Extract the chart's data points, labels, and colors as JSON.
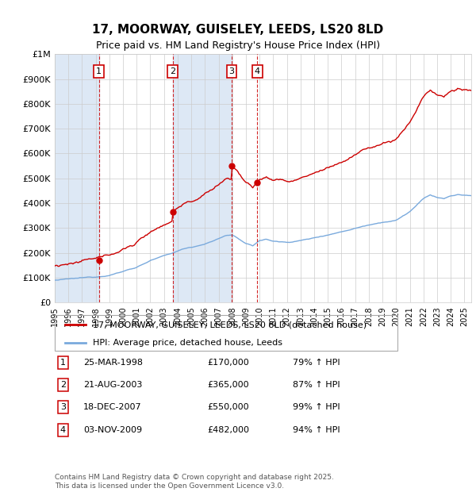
{
  "title": "17, MOORWAY, GUISELEY, LEEDS, LS20 8LD",
  "subtitle": "Price paid vs. HM Land Registry's House Price Index (HPI)",
  "ylim": [
    0,
    1000000
  ],
  "xlim_start": 1995,
  "xlim_end": 2025.5,
  "yticks": [
    0,
    100000,
    200000,
    300000,
    400000,
    500000,
    600000,
    700000,
    800000,
    900000,
    1000000
  ],
  "ytick_labels": [
    "£0",
    "£100K",
    "£200K",
    "£300K",
    "£400K",
    "£500K",
    "£600K",
    "£700K",
    "£800K",
    "£900K",
    "£1M"
  ],
  "transactions": [
    {
      "num": 1,
      "date": "25-MAR-1998",
      "price": 170000,
      "hpi_pct": "79%",
      "year": 1998.23
    },
    {
      "num": 2,
      "date": "21-AUG-2003",
      "price": 365000,
      "hpi_pct": "87%",
      "year": 2003.64
    },
    {
      "num": 3,
      "date": "18-DEC-2007",
      "price": 550000,
      "hpi_pct": "99%",
      "year": 2007.96
    },
    {
      "num": 4,
      "date": "03-NOV-2009",
      "price": 482000,
      "hpi_pct": "94%",
      "year": 2009.84
    }
  ],
  "legend_property": "17, MOORWAY, GUISELEY, LEEDS, LS20 8LD (detached house)",
  "legend_hpi": "HPI: Average price, detached house, Leeds",
  "property_line_color": "#cc0000",
  "hpi_line_color": "#7aaadd",
  "shade_color": "#dde8f5",
  "marker_color": "#cc0000",
  "dashed_line_color": "#cc0000",
  "footer": "Contains HM Land Registry data © Crown copyright and database right 2025.\nThis data is licensed under the Open Government Licence v3.0.",
  "background_color": "#ffffff",
  "grid_color": "#cccccc"
}
